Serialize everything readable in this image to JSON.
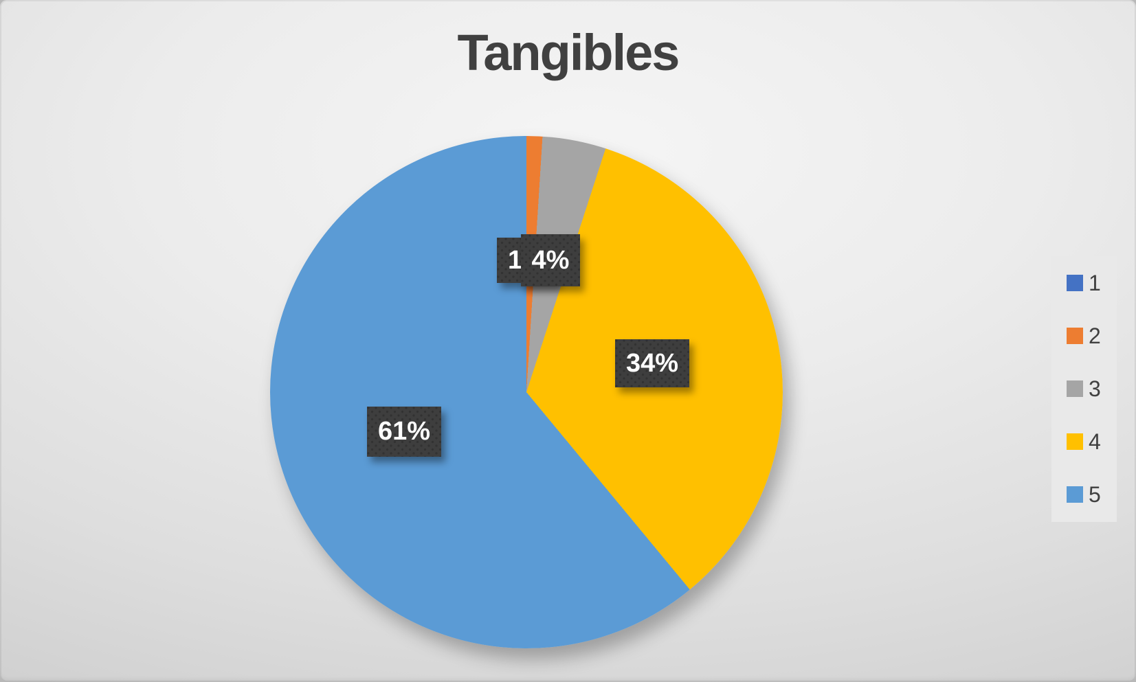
{
  "chart_data": {
    "type": "pie",
    "title": "Tangibles",
    "legend_position": "right",
    "unit": "percent",
    "start_angle_deg": 0,
    "direction": "clockwise",
    "categories": [
      "1",
      "2",
      "3",
      "4",
      "5"
    ],
    "values": [
      0,
      1,
      4,
      34,
      61
    ],
    "slices": [
      {
        "label": "1",
        "value": 0,
        "color": "#4472C4",
        "pct_label": ""
      },
      {
        "label": "2",
        "value": 1,
        "color": "#ED7D31",
        "pct_label": "1%"
      },
      {
        "label": "3",
        "value": 4,
        "color": "#A5A5A5",
        "pct_label": "4%"
      },
      {
        "label": "4",
        "value": 34,
        "color": "#FFC000",
        "pct_label": "34%"
      },
      {
        "label": "5",
        "value": 61,
        "color": "#5B9BD5",
        "pct_label": "61%"
      }
    ]
  },
  "colors": {
    "title_text": "#404040",
    "legend_text": "#404040",
    "legend_panel": "#e9e9e9",
    "data_label_box": "#3e3e3e",
    "data_label_text": "#ffffff",
    "background_light": "#f5f5f5",
    "background_dark": "#c2c2c2"
  }
}
